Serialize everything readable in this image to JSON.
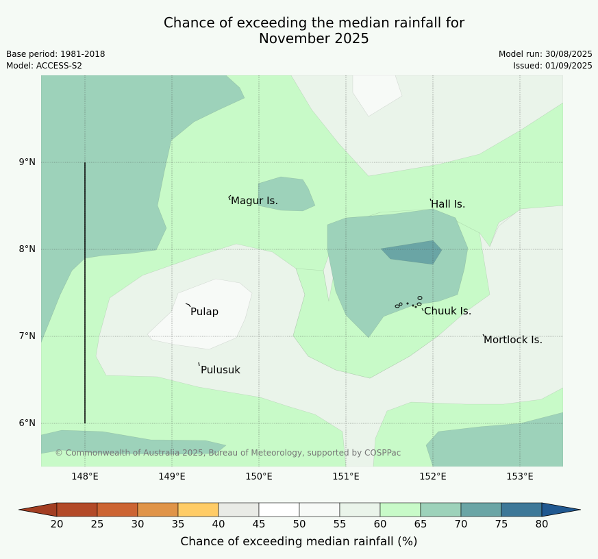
{
  "title_line1": "Chance of exceeding the median rainfall for",
  "title_line2": "November 2025",
  "base_period": "Base period: 1981-2018",
  "model": "Model: ACCESS-S2",
  "model_run": "Model run: 30/08/2025",
  "issued": "Issued: 01/09/2025",
  "copyright": "© Commonwealth of Australia 2025, Bureau of Meteorology, supported by COSPPac",
  "colors": {
    "c40_45": "#e9ebe6",
    "c50_55": "#f7faf7",
    "c55_60": "#eaf4ea",
    "c60_65": "#c8fac8",
    "c65_70": "#9dd2ba",
    "c70_75": "#6aa5a5",
    "c75_80": "#3d7898"
  },
  "map": {
    "lon_ticks": [
      "148°E",
      "149°E",
      "150°E",
      "151°E",
      "152°E",
      "153°E"
    ],
    "lat_ticks": [
      "6°N",
      "7°N",
      "8°N",
      "9°N"
    ],
    "places": [
      "Magur Is.",
      "Hall Is.",
      "Pulap",
      "Chuuk Is.",
      "Mortlock Is.",
      "Pulusuk"
    ]
  },
  "colorbar": {
    "title": "Chance of exceeding median rainfall (%)",
    "labels": [
      "20",
      "25",
      "30",
      "35",
      "40",
      "45",
      "50",
      "55",
      "60",
      "65",
      "70",
      "75",
      "80"
    ],
    "colors": [
      "#b34a28",
      "#cc6432",
      "#e09448",
      "#ffcc66",
      "#e9ebe6",
      "#ffffff",
      "#f7faf7",
      "#eaf4ea",
      "#c8fac8",
      "#9dd2ba",
      "#6aa5a5",
      "#3d7898"
    ],
    "low_extend": "#a33e22",
    "high_extend": "#205890"
  }
}
